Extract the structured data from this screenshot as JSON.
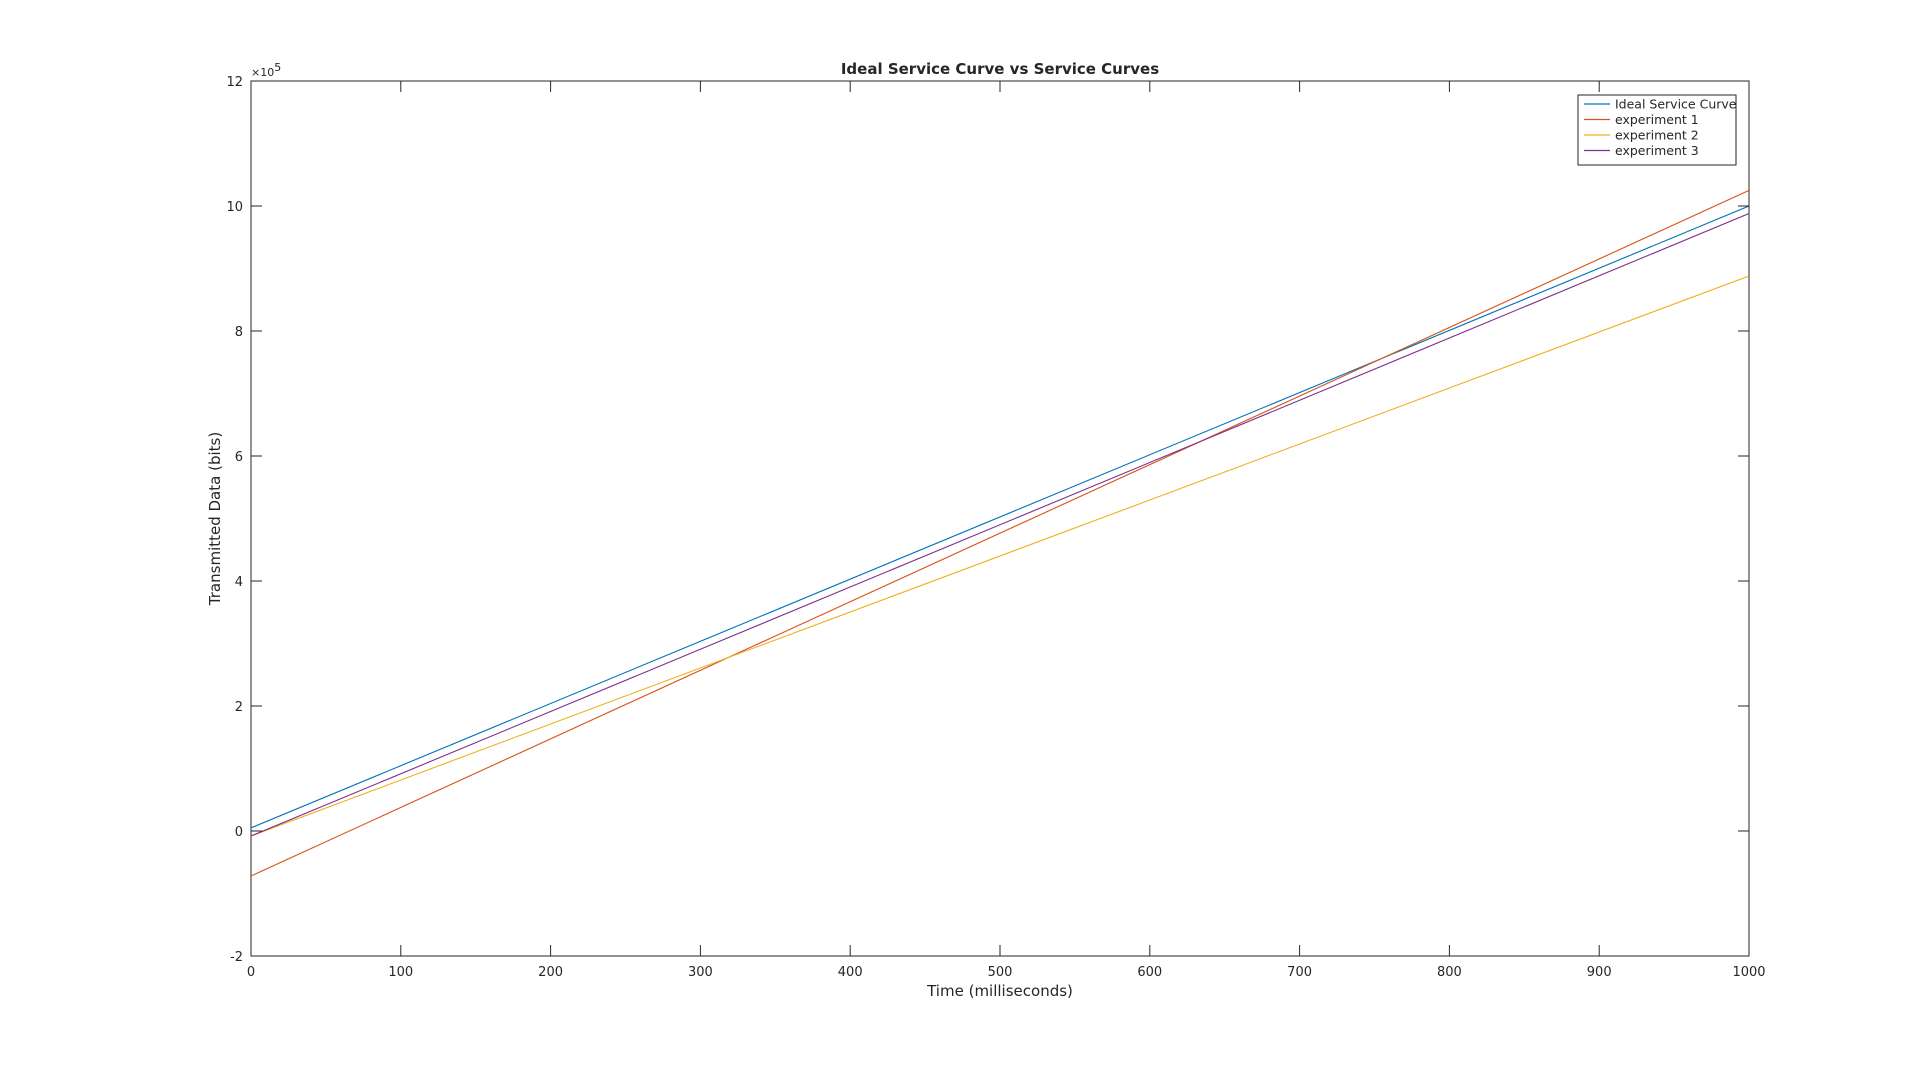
{
  "chart_data": {
    "type": "line",
    "title": "Ideal Service Curve vs Service Curves",
    "xlabel": "Time (milliseconds)",
    "ylabel": "Transmitted Data (bits)",
    "y_exponent_base": "×10",
    "y_exponent_power": "5",
    "xlim": [
      0,
      1000
    ],
    "ylim": [
      -2,
      12
    ],
    "y_scale": 100000,
    "xticks": [
      0,
      100,
      200,
      300,
      400,
      500,
      600,
      700,
      800,
      900,
      1000
    ],
    "xtick_labels": [
      "0",
      "100",
      "200",
      "300",
      "400",
      "500",
      "600",
      "700",
      "800",
      "900",
      "1000"
    ],
    "yticks": [
      -2,
      0,
      2,
      4,
      6,
      8,
      10,
      12
    ],
    "ytick_labels": [
      "-2",
      "0",
      "2",
      "4",
      "6",
      "8",
      "10",
      "12"
    ],
    "grid": false,
    "legend_position": "top-right",
    "series": [
      {
        "name": "Ideal Service Curve",
        "color": "#0072BD",
        "x": [
          0,
          1000
        ],
        "y": [
          0.05,
          10.0
        ]
      },
      {
        "name": "experiment 1",
        "color": "#D95319",
        "x": [
          0,
          1000
        ],
        "y": [
          -0.72,
          10.25
        ]
      },
      {
        "name": "experiment 2",
        "color": "#EDB120",
        "x": [
          0,
          1000
        ],
        "y": [
          -0.08,
          8.88
        ]
      },
      {
        "name": "experiment 3",
        "color": "#7E2F8E",
        "x": [
          0,
          1000
        ],
        "y": [
          -0.08,
          9.88
        ]
      }
    ]
  }
}
